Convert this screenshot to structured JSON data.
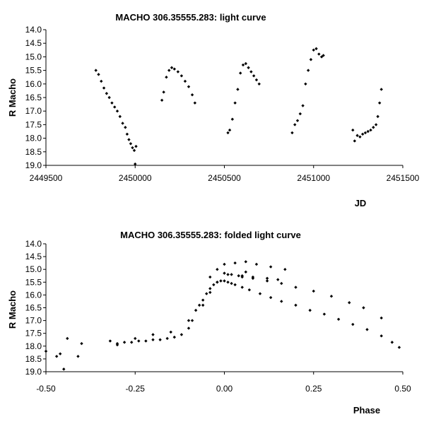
{
  "chart_data": [
    {
      "type": "scatter",
      "title": "MACHO 306.35555.283: light curve",
      "xlabel": "JD",
      "ylabel": "R Macho",
      "xlim": [
        2449500,
        2451500
      ],
      "ylim": [
        14.0,
        19.0
      ],
      "y_inverted": true,
      "grid": false,
      "xticks": [
        2449500,
        2450000,
        2450500,
        2451000,
        2451500
      ],
      "xtick_labels": [
        "2449500",
        "2450000",
        "2450500",
        "2451000",
        "2451500"
      ],
      "yticks": [
        14.0,
        14.5,
        15.0,
        15.5,
        16.0,
        16.5,
        17.0,
        17.5,
        18.0,
        18.5,
        19.0
      ],
      "ytick_labels": [
        "14.0",
        "14.5",
        "15.0",
        "15.5",
        "16.0",
        "16.5",
        "17.0",
        "17.5",
        "18.0",
        "18.5",
        "19.0"
      ],
      "series": [
        {
          "x": [
            2449780,
            2449795,
            2449810,
            2449825,
            2449840,
            2449855,
            2449870,
            2449885,
            2449900,
            2449915,
            2449930,
            2449945,
            2449955,
            2449965,
            2449975,
            2449985,
            2449995,
            2450005,
            2450000,
            2450150,
            2450160,
            2450175,
            2450190,
            2450205,
            2450220,
            2450240,
            2450260,
            2450280,
            2450300,
            2450320,
            2450335,
            2450520,
            2450530,
            2450545,
            2450560,
            2450575,
            2450590,
            2450605,
            2450620,
            2450635,
            2450650,
            2450665,
            2450680,
            2450695,
            2450880,
            2450895,
            2450910,
            2450925,
            2450940,
            2450955,
            2450970,
            2450985,
            2451000,
            2451015,
            2451030,
            2451045,
            2451055,
            2451220,
            2451230,
            2451245,
            2451260,
            2451275,
            2451290,
            2451305,
            2451320,
            2451335,
            2451350,
            2451360,
            2451370,
            2451380
          ],
          "y": [
            15.5,
            15.65,
            15.9,
            16.15,
            16.35,
            16.5,
            16.7,
            16.85,
            17.0,
            17.2,
            17.45,
            17.6,
            17.85,
            18.05,
            18.2,
            18.35,
            18.45,
            18.3,
            18.95,
            16.6,
            16.3,
            15.75,
            15.5,
            15.4,
            15.45,
            15.55,
            15.7,
            15.9,
            16.1,
            16.4,
            16.7,
            17.8,
            17.7,
            17.3,
            16.7,
            16.2,
            15.6,
            15.3,
            15.25,
            15.4,
            15.55,
            15.7,
            15.85,
            16.0,
            17.8,
            17.5,
            17.35,
            17.1,
            16.8,
            16.0,
            15.5,
            15.1,
            14.75,
            14.7,
            14.9,
            15.0,
            14.95,
            17.7,
            18.1,
            17.9,
            17.95,
            17.85,
            17.8,
            17.75,
            17.7,
            17.6,
            17.5,
            17.2,
            16.7,
            16.2
          ]
        }
      ]
    },
    {
      "type": "scatter",
      "title": "MACHO 306.35555.283: folded light curve",
      "xlabel": "Phase",
      "ylabel": "R Macho",
      "xlim": [
        -0.5,
        0.5
      ],
      "ylim": [
        14.0,
        19.0
      ],
      "y_inverted": true,
      "grid": false,
      "xticks": [
        -0.5,
        -0.25,
        0.0,
        0.25,
        0.5
      ],
      "xtick_labels": [
        "-0.50",
        "-0.25",
        "0.00",
        "0.25",
        "0.50"
      ],
      "yticks": [
        14.0,
        14.5,
        15.0,
        15.5,
        16.0,
        16.5,
        17.0,
        17.5,
        18.0,
        18.5,
        19.0
      ],
      "ytick_labels": [
        "14.0",
        "14.5",
        "15.0",
        "15.5",
        "16.0",
        "16.5",
        "17.0",
        "17.5",
        "18.0",
        "18.5",
        "19.0"
      ],
      "series": [
        {
          "x": [
            -0.5,
            -0.47,
            -0.46,
            -0.45,
            -0.44,
            -0.41,
            -0.4,
            -0.32,
            -0.3,
            -0.28,
            -0.26,
            -0.24,
            -0.22,
            -0.2,
            -0.18,
            -0.16,
            -0.14,
            -0.12,
            -0.1,
            -0.09,
            -0.08,
            -0.07,
            -0.06,
            -0.05,
            -0.04,
            -0.03,
            -0.02,
            -0.01,
            0.0,
            0.01,
            0.02,
            0.03,
            0.05,
            0.07,
            0.1,
            0.13,
            0.16,
            0.2,
            0.24,
            0.28,
            0.32,
            0.36,
            0.4,
            0.44,
            0.47,
            0.49,
            -0.3,
            -0.25,
            -0.2,
            -0.15,
            -0.1,
            -0.06,
            -0.04,
            -0.02,
            0.0,
            0.02,
            0.05,
            0.08,
            0.12,
            0.16,
            0.2,
            0.25,
            0.3,
            0.35,
            0.39,
            0.44,
            0.0,
            0.03,
            0.06,
            0.09,
            0.13,
            0.17,
            0.01,
            0.04,
            0.08,
            0.12,
            0.15,
            -0.02,
            -0.04,
            0.05,
            0.06
          ],
          "y": [
            18.2,
            18.4,
            18.3,
            18.9,
            17.7,
            18.4,
            17.9,
            17.8,
            17.9,
            17.85,
            17.85,
            17.8,
            17.8,
            17.75,
            17.75,
            17.7,
            17.65,
            17.55,
            17.3,
            17.0,
            16.6,
            16.4,
            16.2,
            15.95,
            15.75,
            15.6,
            15.5,
            15.45,
            15.45,
            15.5,
            15.55,
            15.6,
            15.7,
            15.8,
            15.95,
            16.1,
            16.25,
            16.4,
            16.6,
            16.75,
            16.95,
            17.15,
            17.35,
            17.6,
            17.85,
            18.05,
            17.95,
            17.7,
            17.55,
            17.45,
            17.0,
            16.4,
            15.9,
            15.5,
            15.15,
            15.2,
            15.25,
            15.35,
            15.45,
            15.55,
            15.7,
            15.85,
            16.05,
            16.3,
            16.5,
            16.9,
            14.8,
            14.75,
            14.7,
            14.8,
            14.9,
            15.0,
            15.2,
            15.25,
            15.3,
            15.35,
            15.4,
            15.0,
            15.3,
            15.3,
            15.1
          ]
        }
      ]
    }
  ]
}
